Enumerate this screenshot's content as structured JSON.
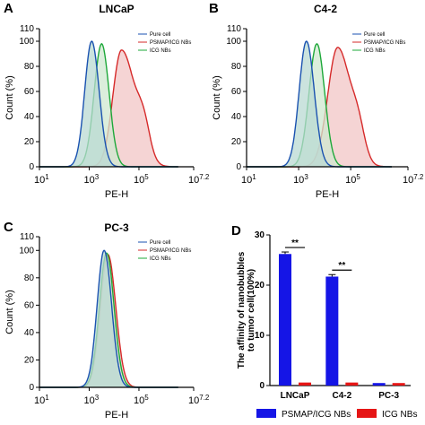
{
  "chart_data": [
    {
      "type": "area",
      "panel_letter": "A",
      "title": "LNCaP",
      "xlabel": "PE-H",
      "ylabel": "Count (%)",
      "xscale": "log",
      "xlim": [
        10,
        15849
      ],
      "ylim": [
        0,
        110
      ],
      "yticks": [
        "0",
        "20",
        "40",
        "60",
        "80",
        "100",
        "110"
      ],
      "xticks": [
        {
          "base": "10",
          "exp": "1"
        },
        {
          "base": "10",
          "exp": "3"
        },
        {
          "base": "10",
          "exp": "5"
        },
        {
          "base": "10",
          "exp": "7.2"
        }
      ],
      "legend_position": "top-right",
      "series": [
        {
          "name": "Pure cell",
          "color": "#1a52b0",
          "fill": "#b9d9d3",
          "peak_exp": 3.1,
          "peak": 100,
          "width_left": 0.28,
          "width_right": 0.3
        },
        {
          "name": "PSMAP/ICG NBs",
          "color": "#d62a2a",
          "fill": "#f2c6c6",
          "peak_exp": 4.3,
          "peak": 93,
          "width_left": 0.35,
          "width_right": 0.55,
          "shoulder": {
            "exp": 5.2,
            "height": 22,
            "width": 0.25
          }
        },
        {
          "name": "ICG NBs",
          "color": "#1ea83a",
          "fill": "#cfe8d0",
          "peak_exp": 3.5,
          "peak": 98,
          "width_left": 0.3,
          "width_right": 0.3
        }
      ]
    },
    {
      "type": "area",
      "panel_letter": "B",
      "title": "C4-2",
      "xlabel": "PE-H",
      "ylabel": "Count (%)",
      "xscale": "log",
      "xlim": [
        10,
        15849
      ],
      "ylim": [
        0,
        110
      ],
      "yticks": [
        "0",
        "20",
        "40",
        "60",
        "80",
        "100",
        "110"
      ],
      "xticks": [
        {
          "base": "10",
          "exp": "1"
        },
        {
          "base": "10",
          "exp": "3"
        },
        {
          "base": "10",
          "exp": "5"
        },
        {
          "base": "10",
          "exp": "7.2"
        }
      ],
      "legend_position": "top-right",
      "series": [
        {
          "name": "Pure cell",
          "color": "#1a52b0",
          "fill": "#b9d9d3",
          "peak_exp": 3.3,
          "peak": 100,
          "width_left": 0.28,
          "width_right": 0.3
        },
        {
          "name": "PSMAP/ICG NBs",
          "color": "#d62a2a",
          "fill": "#f2c6c6",
          "peak_exp": 4.5,
          "peak": 95,
          "width_left": 0.38,
          "width_right": 0.5,
          "shoulder": {
            "exp": 5.3,
            "height": 20,
            "width": 0.25
          }
        },
        {
          "name": "ICG NBs",
          "color": "#1ea83a",
          "fill": "#cfe8d0",
          "peak_exp": 3.7,
          "peak": 98,
          "width_left": 0.3,
          "width_right": 0.3
        }
      ]
    },
    {
      "type": "area",
      "panel_letter": "C",
      "title": "PC-3",
      "xlabel": "PE-H",
      "ylabel": "Count (%)",
      "xscale": "log",
      "xlim": [
        10,
        15849
      ],
      "ylim": [
        0,
        110
      ],
      "yticks": [
        "0",
        "20",
        "40",
        "60",
        "80",
        "100",
        "110"
      ],
      "xticks": [
        {
          "base": "10",
          "exp": "1"
        },
        {
          "base": "10",
          "exp": "3"
        },
        {
          "base": "10",
          "exp": "5"
        },
        {
          "base": "10",
          "exp": "7.2"
        }
      ],
      "legend_position": "top-right",
      "series": [
        {
          "name": "Pure cell",
          "color": "#1a52b0",
          "fill": "#b9d9d3",
          "peak_exp": 3.6,
          "peak": 100,
          "width_left": 0.28,
          "width_right": 0.3
        },
        {
          "name": "PSMAP/ICG NBs",
          "color": "#d62a2a",
          "fill": "#f2c6c6",
          "peak_exp": 3.75,
          "peak": 97,
          "width_left": 0.3,
          "width_right": 0.32
        },
        {
          "name": "ICG NBs",
          "color": "#1ea83a",
          "fill": "#cfe8d0",
          "peak_exp": 3.7,
          "peak": 98,
          "width_left": 0.29,
          "width_right": 0.3
        }
      ]
    },
    {
      "type": "bar",
      "panel_letter": "D",
      "title": "",
      "ylabel": "The affinity of nanobubbles to tumor cell(100%)",
      "categories": [
        "LNCaP",
        "C4-2",
        "PC-3"
      ],
      "ylim": [
        0,
        30
      ],
      "yticks": [
        "0",
        "10",
        "20",
        "30"
      ],
      "series": [
        {
          "name": "PSMAP/ICG NBs",
          "color": "#1515e6",
          "values": [
            26.2,
            21.7,
            0.5
          ],
          "errors": [
            0.4,
            0.4,
            0.05
          ]
        },
        {
          "name": "ICG NBs",
          "color": "#e61515",
          "values": [
            0.6,
            0.6,
            0.5
          ],
          "errors": [
            0.05,
            0.05,
            0.05
          ]
        }
      ],
      "significance": [
        {
          "category": "LNCaP",
          "label": "**"
        },
        {
          "category": "C4-2",
          "label": "**"
        }
      ],
      "legend_position": "bottom"
    }
  ]
}
